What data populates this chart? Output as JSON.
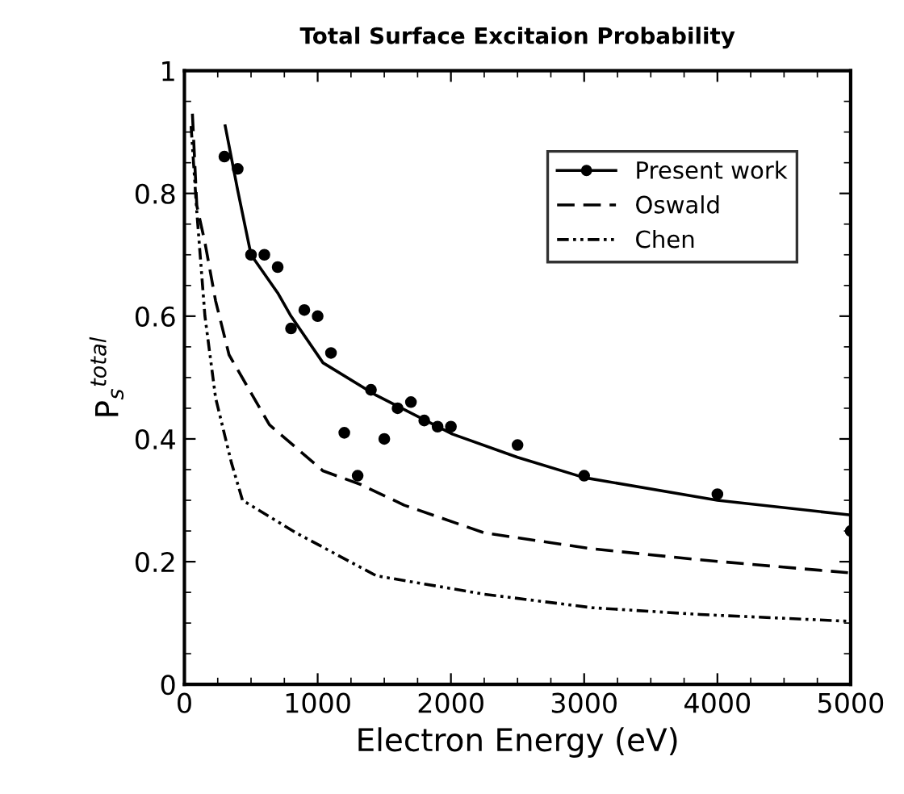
{
  "chart_data": {
    "type": "line",
    "title": "Total Surface Excitaion Probability",
    "xlabel": "Electron Energy (eV)",
    "ylabel": "P$_{s}$$^{total}$",
    "xlim": [
      0,
      5000
    ],
    "xticks": [
      0,
      1000,
      2000,
      3000,
      4000,
      5000
    ],
    "ylim": [
      0,
      1
    ],
    "yticks": [
      0,
      0.2,
      0.4,
      0.6,
      0.8,
      1
    ],
    "legend": "top right",
    "grid": false,
    "series": [
      {
        "name": "Present work",
        "type": "scatter",
        "marker": "circle",
        "color": "#000000",
        "x": [
          300,
          400,
          500,
          600,
          700,
          800,
          900,
          1000,
          1100,
          1200,
          1300,
          1400,
          1500,
          1600,
          1700,
          1800,
          1900,
          2000,
          2500,
          3000,
          4000,
          5000
        ],
        "values": [
          0.86,
          0.84,
          0.7,
          0.7,
          0.68,
          0.58,
          0.61,
          0.6,
          0.54,
          0.41,
          0.34,
          0.48,
          0.4,
          0.45,
          0.46,
          0.43,
          0.42,
          0.42,
          0.39,
          0.34,
          0.31,
          0.25
        ]
      },
      {
        "line_style": "solid",
        "color": "#000000",
        "x": [
          306,
          400,
          500,
          700,
          800,
          1040,
          1440,
          2010,
          2500,
          3000,
          4000,
          5000
        ],
        "values": [
          0.91,
          0.805,
          0.7,
          0.638,
          0.6,
          0.524,
          0.471,
          0.408,
          0.37,
          0.337,
          0.3,
          0.276
        ]
      },
      {
        "name": "Oswald",
        "line_style": "dashed",
        "color": "#000000",
        "x": [
          60,
          93,
          154,
          234,
          335,
          638,
          1040,
          1320,
          1650,
          2250,
          3060,
          3870,
          4980
        ],
        "values": [
          0.93,
          0.78,
          0.72,
          0.625,
          0.537,
          0.423,
          0.348,
          0.326,
          0.292,
          0.247,
          0.221,
          0.203,
          0.182
        ]
      },
      {
        "name": "Chen",
        "line_style": "dotted",
        "color": "#000000",
        "x": [
          50,
          93,
          154,
          234,
          353,
          436,
          838,
          1440,
          2250,
          3060,
          3870,
          4980
        ],
        "values": [
          0.91,
          0.77,
          0.6,
          0.467,
          0.361,
          0.3,
          0.247,
          0.177,
          0.147,
          0.125,
          0.114,
          0.103
        ]
      }
    ]
  }
}
